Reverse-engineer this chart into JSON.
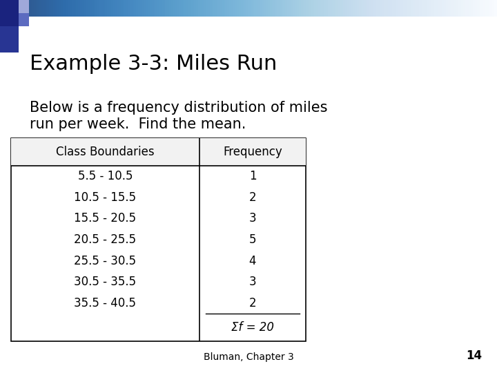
{
  "title": "Example 3-3: Miles Run",
  "subtitle_line1": "Below is a frequency distribution of miles",
  "subtitle_line2": "run per week.  Find the mean.",
  "col1_header": "Class Boundaries",
  "col2_header": "Frequency",
  "rows": [
    [
      "5.5 - 10.5",
      "1"
    ],
    [
      "10.5 - 15.5",
      "2"
    ],
    [
      "15.5 - 20.5",
      "3"
    ],
    [
      "20.5 - 25.5",
      "5"
    ],
    [
      "25.5 - 30.5",
      "4"
    ],
    [
      "30.5 - 35.5",
      "3"
    ],
    [
      "35.5 - 40.5",
      "2"
    ]
  ],
  "sum_label": "Σf = 20",
  "footer": "Bluman, Chapter 3",
  "page_num": "14",
  "bg_color": "#ffffff",
  "title_fontsize": 22,
  "subtitle_fontsize": 15,
  "header_fontsize": 12,
  "cell_fontsize": 12,
  "footer_fontsize": 10,
  "page_fontsize": 12
}
